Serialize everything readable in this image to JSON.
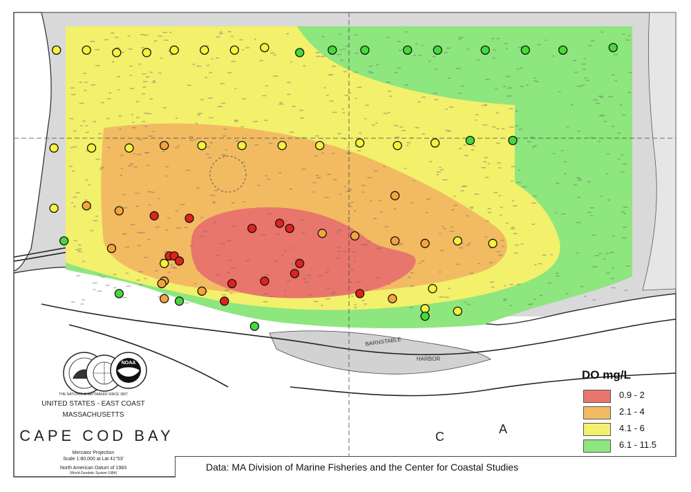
{
  "legend": {
    "title": "DO mg/L",
    "items": [
      {
        "label": "0.9 - 2",
        "color": "#e8766c"
      },
      {
        "label": "2.1 - 4",
        "color": "#f2bb62"
      },
      {
        "label": "4.1 - 6",
        "color": "#f3f06c"
      },
      {
        "label": "6.1 - 11.5",
        "color": "#8ee67e"
      }
    ]
  },
  "credit": "Data: MA Division of Marine Fisheries and the Center for Coastal Studies",
  "titleblock": {
    "agency": "THE NATION'S CHARTMAKER SINCE 1807",
    "region": "UNITED STATES - EAST COAST",
    "state": "MASSACHUSETTS",
    "chart_name": "CAPE COD BAY",
    "projection": "Mercator Projection",
    "scale": "Scale 1:80,000 at Lat 41°53'",
    "datum": "North American Datum of 1983",
    "datum_sub": "(World Geodetic System 1984)",
    "noaa": "NOAA"
  },
  "map_labels": {
    "harbor_1": "BARNSTABLE",
    "harbor_2": "HARBOR",
    "letter_c": "C",
    "letter_a": "A"
  },
  "class_colors": {
    "red": "#e2231a",
    "orange": "#f5a43a",
    "yellow": "#f7f23a",
    "green": "#45d93e"
  },
  "stations": [
    {
      "x": -70.515,
      "y": 41.975,
      "c": "yellow"
    },
    {
      "x": -70.503,
      "y": 41.975,
      "c": "yellow"
    },
    {
      "x": -70.491,
      "y": 41.974,
      "c": "yellow"
    },
    {
      "x": -70.479,
      "y": 41.974,
      "c": "yellow"
    },
    {
      "x": -70.468,
      "y": 41.975,
      "c": "yellow"
    },
    {
      "x": -70.456,
      "y": 41.975,
      "c": "yellow"
    },
    {
      "x": -70.444,
      "y": 41.975,
      "c": "yellow"
    },
    {
      "x": -70.432,
      "y": 41.976,
      "c": "yellow"
    },
    {
      "x": -70.418,
      "y": 41.974,
      "c": "green"
    },
    {
      "x": -70.405,
      "y": 41.975,
      "c": "green"
    },
    {
      "x": -70.392,
      "y": 41.975,
      "c": "green"
    },
    {
      "x": -70.375,
      "y": 41.975,
      "c": "green"
    },
    {
      "x": -70.363,
      "y": 41.975,
      "c": "green"
    },
    {
      "x": -70.344,
      "y": 41.975,
      "c": "green"
    },
    {
      "x": -70.328,
      "y": 41.975,
      "c": "green"
    },
    {
      "x": -70.313,
      "y": 41.975,
      "c": "green"
    },
    {
      "x": -70.293,
      "y": 41.976,
      "c": "green"
    },
    {
      "x": -70.516,
      "y": 41.936,
      "c": "yellow"
    },
    {
      "x": -70.501,
      "y": 41.936,
      "c": "yellow"
    },
    {
      "x": -70.486,
      "y": 41.936,
      "c": "yellow"
    },
    {
      "x": -70.472,
      "y": 41.937,
      "c": "orange"
    },
    {
      "x": -70.457,
      "y": 41.937,
      "c": "yellow"
    },
    {
      "x": -70.441,
      "y": 41.937,
      "c": "yellow"
    },
    {
      "x": -70.425,
      "y": 41.937,
      "c": "yellow"
    },
    {
      "x": -70.41,
      "y": 41.937,
      "c": "yellow"
    },
    {
      "x": -70.394,
      "y": 41.938,
      "c": "yellow"
    },
    {
      "x": -70.379,
      "y": 41.937,
      "c": "yellow"
    },
    {
      "x": -70.364,
      "y": 41.938,
      "c": "yellow"
    },
    {
      "x": -70.35,
      "y": 41.939,
      "c": "green"
    },
    {
      "x": -70.333,
      "y": 41.939,
      "c": "green"
    },
    {
      "x": -70.516,
      "y": 41.912,
      "c": "yellow"
    },
    {
      "x": -70.503,
      "y": 41.913,
      "c": "orange"
    },
    {
      "x": -70.49,
      "y": 41.911,
      "c": "orange"
    },
    {
      "x": -70.476,
      "y": 41.909,
      "c": "red"
    },
    {
      "x": -70.462,
      "y": 41.908,
      "c": "red"
    },
    {
      "x": -70.437,
      "y": 41.904,
      "c": "red"
    },
    {
      "x": -70.426,
      "y": 41.906,
      "c": "red"
    },
    {
      "x": -70.422,
      "y": 41.904,
      "c": "red"
    },
    {
      "x": -70.409,
      "y": 41.902,
      "c": "orange"
    },
    {
      "x": -70.396,
      "y": 41.901,
      "c": "orange"
    },
    {
      "x": -70.38,
      "y": 41.917,
      "c": "orange"
    },
    {
      "x": -70.38,
      "y": 41.899,
      "c": "orange"
    },
    {
      "x": -70.368,
      "y": 41.898,
      "c": "orange"
    },
    {
      "x": -70.355,
      "y": 41.899,
      "c": "yellow"
    },
    {
      "x": -70.341,
      "y": 41.898,
      "c": "yellow"
    },
    {
      "x": -70.512,
      "y": 41.899,
      "c": "green"
    },
    {
      "x": -70.493,
      "y": 41.896,
      "c": "orange"
    },
    {
      "x": -70.47,
      "y": 41.893,
      "c": "red"
    },
    {
      "x": -70.468,
      "y": 41.893,
      "c": "red"
    },
    {
      "x": -70.466,
      "y": 41.891,
      "c": "red"
    },
    {
      "x": -70.472,
      "y": 41.89,
      "c": "yellow"
    },
    {
      "x": -70.418,
      "y": 41.89,
      "c": "red"
    },
    {
      "x": -70.42,
      "y": 41.886,
      "c": "red"
    },
    {
      "x": -70.472,
      "y": 41.883,
      "c": "orange"
    },
    {
      "x": -70.473,
      "y": 41.882,
      "c": "orange"
    },
    {
      "x": -70.445,
      "y": 41.882,
      "c": "red"
    },
    {
      "x": -70.432,
      "y": 41.883,
      "c": "red"
    },
    {
      "x": -70.457,
      "y": 41.879,
      "c": "orange"
    },
    {
      "x": -70.49,
      "y": 41.878,
      "c": "green"
    },
    {
      "x": -70.472,
      "y": 41.876,
      "c": "orange"
    },
    {
      "x": -70.466,
      "y": 41.875,
      "c": "green"
    },
    {
      "x": -70.448,
      "y": 41.875,
      "c": "red"
    },
    {
      "x": -70.394,
      "y": 41.878,
      "c": "red"
    },
    {
      "x": -70.381,
      "y": 41.876,
      "c": "orange"
    },
    {
      "x": -70.365,
      "y": 41.88,
      "c": "yellow"
    },
    {
      "x": -70.368,
      "y": 41.872,
      "c": "yellow"
    },
    {
      "x": -70.368,
      "y": 41.869,
      "c": "green"
    },
    {
      "x": -70.355,
      "y": 41.871,
      "c": "yellow"
    },
    {
      "x": -70.436,
      "y": 41.865,
      "c": "green"
    }
  ]
}
